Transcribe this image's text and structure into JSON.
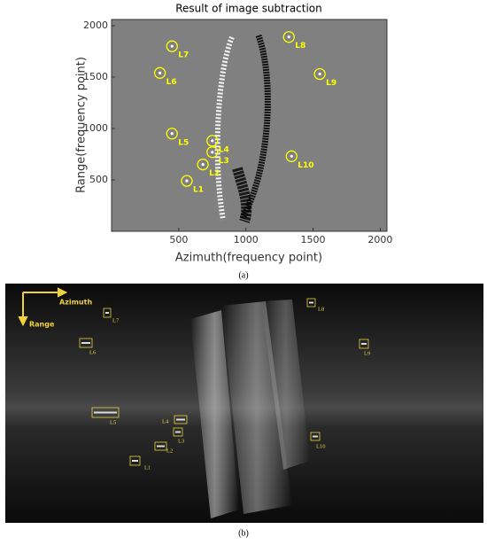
{
  "chart_data": {
    "type": "scatter",
    "title": "Result of image subtraction",
    "x_label": "Azimuth(frequency point)",
    "y_label": "Range(frequency point)",
    "xlim": [
      0,
      2050
    ],
    "ylim": [
      0,
      2060
    ],
    "xticks": [
      500,
      1000,
      1500,
      2000
    ],
    "yticks": [
      500,
      1000,
      1500,
      2000
    ],
    "color": "#ffff00",
    "points": [
      {
        "label": "L1",
        "x": 560,
        "y": 490
      },
      {
        "label": "L2",
        "x": 680,
        "y": 650
      },
      {
        "label": "L3",
        "x": 750,
        "y": 770
      },
      {
        "label": "L4",
        "x": 750,
        "y": 880
      },
      {
        "label": "L5",
        "x": 450,
        "y": 950
      },
      {
        "label": "L6",
        "x": 360,
        "y": 1540
      },
      {
        "label": "L7",
        "x": 450,
        "y": 1800
      },
      {
        "label": "L8",
        "x": 1320,
        "y": 1890
      },
      {
        "label": "L9",
        "x": 1550,
        "y": 1530
      },
      {
        "label": "L10",
        "x": 1340,
        "y": 730
      }
    ]
  },
  "panel_b": {
    "azimuth": "Azimuth",
    "range": "Range",
    "targets": [
      "L1",
      "L2",
      "L3",
      "L4",
      "L5",
      "L6",
      "L7",
      "L8",
      "L9",
      "L10"
    ]
  },
  "captions": [
    "(a)",
    "(b)"
  ]
}
